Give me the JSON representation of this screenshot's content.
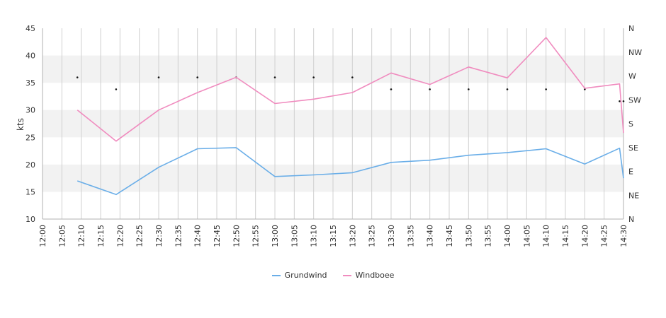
{
  "chart_data": {
    "type": "line",
    "ylabel": "kts",
    "ylim": [
      10,
      45
    ],
    "yticks": [
      "10",
      "15",
      "20",
      "25",
      "30",
      "35",
      "40",
      "45"
    ],
    "xlim": [
      "12:00",
      "14:30"
    ],
    "xticks": [
      "12:00",
      "12:05",
      "12:10",
      "12:15",
      "12:20",
      "12:25",
      "12:30",
      "12:35",
      "12:40",
      "12:45",
      "12:50",
      "12:55",
      "13:00",
      "13:05",
      "13:10",
      "13:15",
      "13:20",
      "13:25",
      "13:30",
      "13:35",
      "13:40",
      "13:45",
      "13:50",
      "13:55",
      "14:00",
      "14:05",
      "14:10",
      "14:15",
      "14:20",
      "14:25",
      "14:30"
    ],
    "right_axis": {
      "labels": [
        "N",
        "NE",
        "E",
        "SE",
        "S",
        "SW",
        "W",
        "NW",
        "N"
      ],
      "label": ""
    },
    "series": [
      {
        "name": "Grundwind",
        "color": "#6aaee8",
        "x": [
          "12:09",
          "12:19",
          "12:30",
          "12:40",
          "12:50",
          "13:00",
          "13:10",
          "13:20",
          "13:30",
          "13:40",
          "13:50",
          "14:00",
          "14:10",
          "14:20",
          "14:29",
          "14:30"
        ],
        "values": [
          17.0,
          14.5,
          19.5,
          22.9,
          23.1,
          17.8,
          18.1,
          18.5,
          20.4,
          20.8,
          21.7,
          22.2,
          22.9,
          20.1,
          23.0,
          17.5
        ]
      },
      {
        "name": "Windboee",
        "color": "#f08cbf",
        "x": [
          "12:09",
          "12:19",
          "12:30",
          "12:40",
          "12:50",
          "13:00",
          "13:10",
          "13:20",
          "13:30",
          "13:40",
          "13:50",
          "14:00",
          "14:10",
          "14:20",
          "14:29",
          "14:30"
        ],
        "values": [
          30.0,
          24.3,
          30.0,
          33.2,
          36.0,
          31.2,
          32.0,
          33.2,
          36.8,
          34.7,
          37.9,
          35.9,
          43.3,
          34.0,
          34.8,
          25.8
        ]
      }
    ],
    "direction_markers": {
      "x": [
        "12:09",
        "12:19",
        "12:30",
        "12:40",
        "12:50",
        "13:00",
        "13:10",
        "13:20",
        "13:30",
        "13:40",
        "13:50",
        "14:00",
        "14:10",
        "14:20",
        "14:29",
        "14:30"
      ],
      "values": [
        "W",
        "WSW",
        "W",
        "W",
        "W",
        "W",
        "W",
        "W",
        "WSW",
        "WSW",
        "WSW",
        "WSW",
        "WSW",
        "WSW",
        "SW",
        "SW"
      ]
    },
    "grid": true,
    "legend_position": "bottom"
  }
}
